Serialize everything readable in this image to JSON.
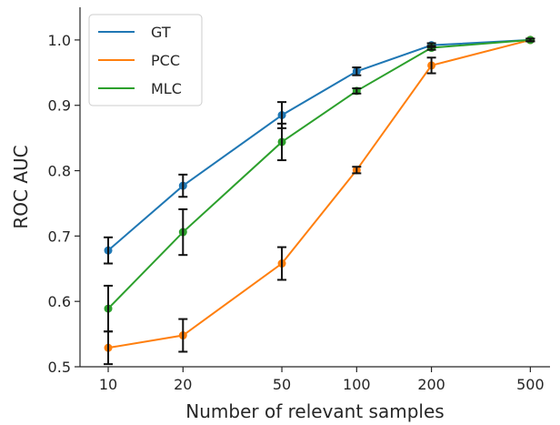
{
  "chart_data": {
    "type": "line",
    "title": "",
    "xlabel": "Number of relevant samples",
    "ylabel": "ROC AUC",
    "x": [
      10,
      20,
      50,
      100,
      200,
      500
    ],
    "x_tick_labels": [
      "10",
      "20",
      "50",
      "100",
      "200",
      "500"
    ],
    "x_scale": "log",
    "ylim": [
      0.5,
      1.05
    ],
    "y_ticks": [
      0.5,
      0.6,
      0.7,
      0.8,
      0.9,
      1.0
    ],
    "y_tick_labels": [
      "0.5",
      "0.6",
      "0.7",
      "0.8",
      "0.9",
      "1.0"
    ],
    "grid": false,
    "legend_position": "top-left",
    "series": [
      {
        "name": "GT",
        "color": "#1f77b4",
        "values": [
          0.678,
          0.777,
          0.885,
          0.952,
          0.992,
          1.0
        ],
        "error": [
          0.02,
          0.017,
          0.02,
          0.006,
          0.003,
          0.002
        ]
      },
      {
        "name": "PCC",
        "color": "#ff7f0e",
        "values": [
          0.529,
          0.548,
          0.658,
          0.801,
          0.961,
          1.0
        ],
        "error": [
          0.025,
          0.025,
          0.025,
          0.005,
          0.012,
          0.002
        ]
      },
      {
        "name": "MLC",
        "color": "#2ca02c",
        "values": [
          0.589,
          0.706,
          0.844,
          0.922,
          0.988,
          1.0
        ],
        "error": [
          0.035,
          0.035,
          0.028,
          0.004,
          0.003,
          0.002
        ]
      }
    ]
  }
}
